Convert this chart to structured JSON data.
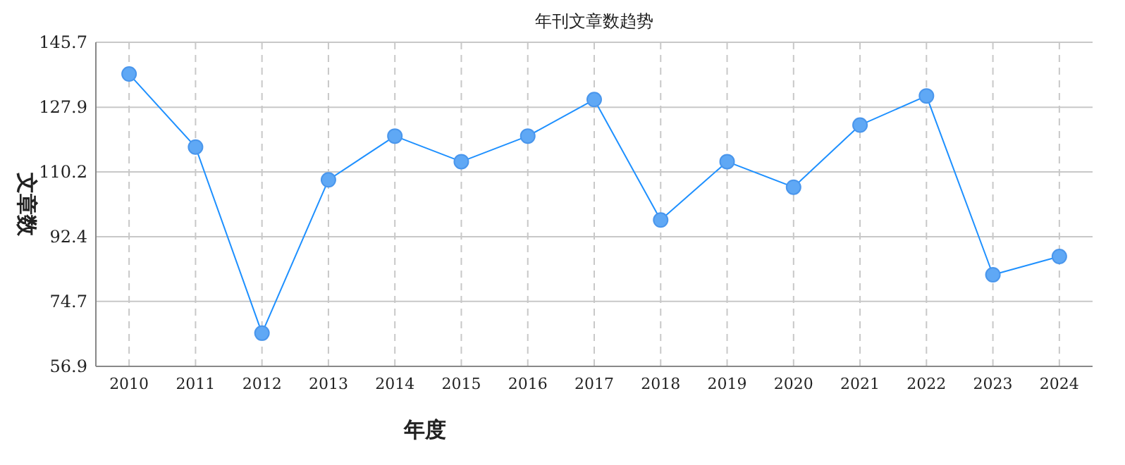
{
  "chart_data": {
    "type": "line",
    "title": "年刊文章数趋势",
    "xlabel": "年度",
    "ylabel": "文章数",
    "categories": [
      "2010",
      "2011",
      "2012",
      "2013",
      "2014",
      "2015",
      "2016",
      "2017",
      "2018",
      "2019",
      "2020",
      "2021",
      "2022",
      "2023",
      "2024"
    ],
    "series": [
      {
        "color": "#1e90ff",
        "values": [
          137,
          117,
          66,
          108,
          120,
          113,
          120,
          130,
          97,
          113,
          106,
          123,
          131,
          82,
          87
        ]
      }
    ],
    "ylim": [
      56.9,
      145.7
    ],
    "yticks": [
      56.9,
      74.7,
      92.4,
      110.2,
      127.9,
      145.7
    ],
    "grid": true,
    "marker": "circle",
    "line_style": "solid"
  }
}
